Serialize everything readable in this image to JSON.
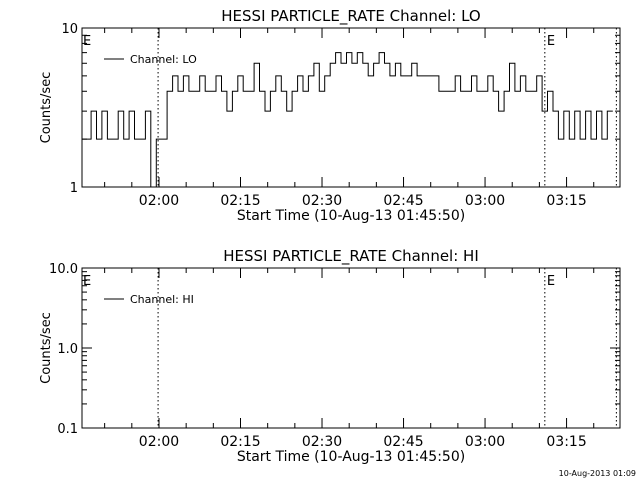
{
  "footer": {
    "timestamp": "10-Aug-2013 01:09"
  },
  "chart_data": [
    {
      "type": "line",
      "title": "HESSI PARTICLE_RATE Channel: LO",
      "xlabel": "Start Time (10-Aug-13 01:45:50)",
      "ylabel": "Counts/sec",
      "yscale": "log",
      "ylim": [
        1,
        10
      ],
      "ytick_labels": [
        "1",
        "10"
      ],
      "ytick_values": [
        1,
        10
      ],
      "xlim": [
        "01:45:50",
        "03:24:50"
      ],
      "xtick_labels": [
        "02:00",
        "02:15",
        "02:30",
        "02:45",
        "03:00",
        "03:15"
      ],
      "xtick_values": [
        "02:00",
        "02:15",
        "02:30",
        "02:45",
        "03:00",
        "03:15"
      ],
      "markers": [
        {
          "x": "01:59:50",
          "label": ""
        },
        {
          "x": "03:11:00",
          "label": "E"
        },
        {
          "x": "03:24:10",
          "label": ""
        }
      ],
      "left_marker_label": "E",
      "legend": {
        "position": "top-left",
        "entries": [
          "Channel: LO"
        ]
      },
      "series": [
        {
          "name": "Channel: LO",
          "x": [
            "01:45:50",
            "01:47:30",
            "01:48:30",
            "01:49:30",
            "01:50:30",
            "01:51:30",
            "01:52:30",
            "01:53:30",
            "01:54:30",
            "01:55:30",
            "01:56:30",
            "01:57:30",
            "01:58:30",
            "01:59:30",
            "02:00:30",
            "02:01:30",
            "02:02:30",
            "02:03:30",
            "02:04:30",
            "02:05:30",
            "02:06:30",
            "02:07:30",
            "02:08:30",
            "02:09:30",
            "02:10:30",
            "02:11:30",
            "02:12:30",
            "02:13:30",
            "02:14:30",
            "02:15:30",
            "02:16:30",
            "02:17:30",
            "02:18:30",
            "02:19:30",
            "02:20:30",
            "02:21:30",
            "02:22:30",
            "02:23:30",
            "02:24:30",
            "02:25:30",
            "02:26:30",
            "02:27:30",
            "02:28:30",
            "02:29:30",
            "02:30:30",
            "02:31:30",
            "02:32:30",
            "02:33:30",
            "02:34:30",
            "02:35:30",
            "02:36:30",
            "02:37:30",
            "02:38:30",
            "02:39:30",
            "02:40:30",
            "02:41:30",
            "02:42:30",
            "02:43:30",
            "02:44:30",
            "02:45:30",
            "02:46:30",
            "02:47:30",
            "02:48:30",
            "02:49:30",
            "02:50:30",
            "02:51:30",
            "02:52:30",
            "02:53:30",
            "02:54:30",
            "02:55:30",
            "02:56:30",
            "02:57:30",
            "02:58:30",
            "02:59:30",
            "03:00:30",
            "03:01:30",
            "03:02:30",
            "03:03:30",
            "03:04:30",
            "03:05:30",
            "03:06:30",
            "03:07:30",
            "03:08:30",
            "03:09:30",
            "03:10:30",
            "03:11:30",
            "03:12:30",
            "03:13:30",
            "03:14:30",
            "03:15:30",
            "03:16:30",
            "03:17:30",
            "03:18:30",
            "03:19:30",
            "03:20:30",
            "03:21:30",
            "03:22:30"
          ],
          "y": [
            2,
            3,
            2,
            3,
            2,
            2,
            3,
            2,
            3,
            2,
            2,
            3,
            1,
            2,
            2,
            4,
            5,
            4,
            5,
            4,
            4,
            5,
            4,
            4,
            5,
            4,
            3,
            4,
            5,
            4,
            4,
            6,
            4,
            3,
            4,
            5,
            4,
            3,
            4,
            5,
            4,
            5,
            6,
            4,
            5,
            6,
            7,
            6,
            7,
            6,
            7,
            6,
            5,
            6,
            7,
            6,
            5,
            6,
            5,
            5,
            6,
            5,
            5,
            5,
            5,
            4,
            4,
            4,
            5,
            4,
            4,
            5,
            4,
            4,
            5,
            4,
            3,
            4,
            6,
            4,
            5,
            4,
            4,
            5,
            3,
            4,
            3,
            2,
            3,
            2,
            3,
            2,
            3,
            2,
            3,
            2,
            3
          ]
        }
      ]
    },
    {
      "type": "line",
      "title": "HESSI PARTICLE_RATE Channel: HI",
      "xlabel": "Start Time (10-Aug-13 01:45:50)",
      "ylabel": "Counts/sec",
      "yscale": "log",
      "ylim": [
        0.1,
        10
      ],
      "ytick_labels": [
        "0.1",
        "1.0",
        "10.0"
      ],
      "ytick_values": [
        0.1,
        1,
        10
      ],
      "xlim": [
        "01:45:50",
        "03:24:50"
      ],
      "xtick_labels": [
        "02:00",
        "02:15",
        "02:30",
        "02:45",
        "03:00",
        "03:15"
      ],
      "xtick_values": [
        "02:00",
        "02:15",
        "02:30",
        "02:45",
        "03:00",
        "03:15"
      ],
      "markers": [
        {
          "x": "01:59:50",
          "label": ""
        },
        {
          "x": "03:11:00",
          "label": "E"
        },
        {
          "x": "03:24:10",
          "label": ""
        }
      ],
      "left_marker_label": "E",
      "legend": {
        "position": "top-left",
        "entries": [
          "Channel: HI"
        ]
      },
      "series": [
        {
          "name": "Channel: HI",
          "x": [],
          "y": []
        }
      ]
    }
  ]
}
